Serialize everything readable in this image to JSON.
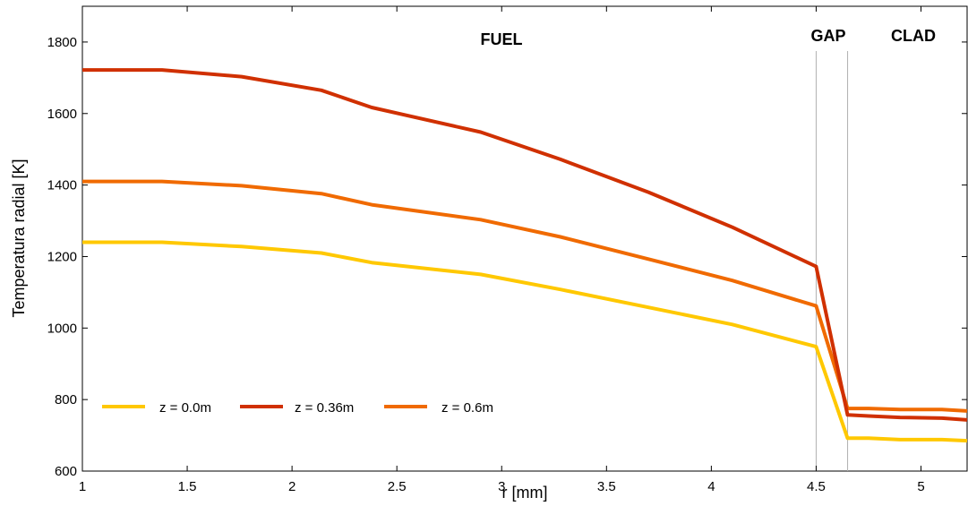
{
  "chart_data": {
    "type": "line",
    "xlabel": "r [mm]",
    "ylabel": "Temperatura radial [K]",
    "xlim": [
      1,
      5.22
    ],
    "ylim": [
      600,
      1900
    ],
    "xticks": [
      "1",
      "1.5",
      "2",
      "2.5",
      "3",
      "3.5",
      "4",
      "4.5",
      "5"
    ],
    "yticks": [
      "600",
      "800",
      "1000",
      "1200",
      "1400",
      "1600",
      "1800"
    ],
    "grid": false,
    "legend_position": "bottom-left",
    "series": [
      {
        "name": "z = 0.0m",
        "color": "#FFC800",
        "x": [
          1.0,
          1.38,
          1.76,
          2.14,
          2.38,
          2.9,
          3.28,
          3.7,
          4.1,
          4.5,
          4.65,
          4.75,
          4.9,
          5.1,
          5.22
        ],
        "y": [
          1240,
          1240,
          1228,
          1210,
          1183,
          1150,
          1108,
          1058,
          1010,
          948,
          692,
          692,
          688,
          688,
          685
        ]
      },
      {
        "name": "z = 0.36m",
        "color": "#D03000",
        "x": [
          1.0,
          1.38,
          1.76,
          2.14,
          2.38,
          2.9,
          3.28,
          3.7,
          4.1,
          4.5,
          4.65,
          4.75,
          4.9,
          5.1,
          5.22
        ],
        "y": [
          1722,
          1722,
          1703,
          1665,
          1617,
          1548,
          1472,
          1380,
          1282,
          1172,
          757,
          754,
          750,
          748,
          743
        ]
      },
      {
        "name": "z = 0.6m",
        "color": "#F06A00",
        "x": [
          1.0,
          1.38,
          1.76,
          2.14,
          2.38,
          2.9,
          3.28,
          3.7,
          4.1,
          4.5,
          4.65,
          4.75,
          4.9,
          5.1,
          5.22
        ],
        "y": [
          1410,
          1410,
          1398,
          1376,
          1345,
          1303,
          1255,
          1193,
          1133,
          1062,
          775,
          775,
          772,
          772,
          768
        ]
      }
    ],
    "regions": [
      {
        "label": "FUEL"
      },
      {
        "label": "GAP"
      },
      {
        "label": "CLAD"
      }
    ],
    "boundaries": [
      4.5,
      4.65
    ]
  }
}
